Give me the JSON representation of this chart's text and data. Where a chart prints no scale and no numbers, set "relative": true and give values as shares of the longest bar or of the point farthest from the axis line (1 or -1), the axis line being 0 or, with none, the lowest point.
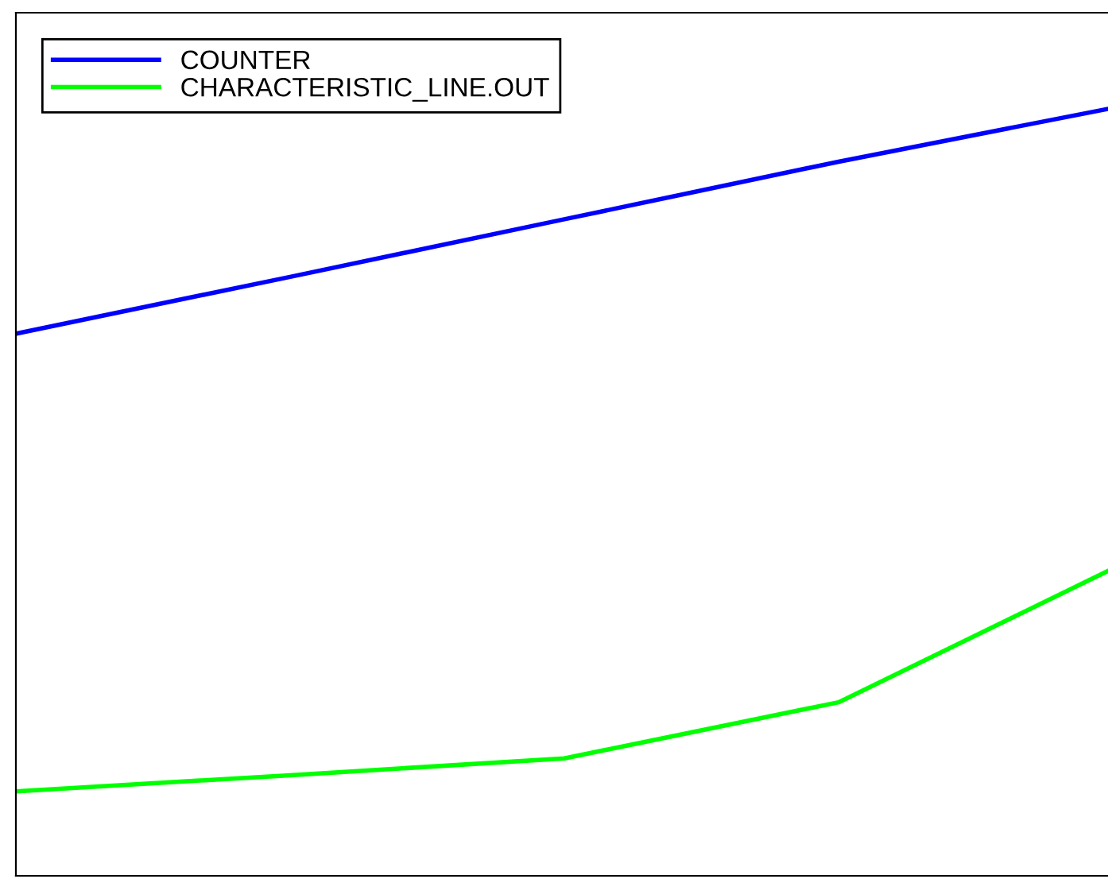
{
  "chart_data": {
    "type": "line",
    "relative": true,
    "legend": "top left",
    "categories": [
      null,
      null,
      null,
      null,
      null
    ],
    "series": [
      {
        "name": "COUNTER",
        "color": "#0000ff",
        "values": [
          0.706,
          0.78,
          0.855,
          0.93,
          1.0
        ]
      },
      {
        "name": "CHARACTERISTIC_LINE.OUT",
        "color": "#00ff00",
        "values": [
          0.11,
          0.131,
          0.153,
          0.226,
          0.4
        ]
      }
    ]
  }
}
